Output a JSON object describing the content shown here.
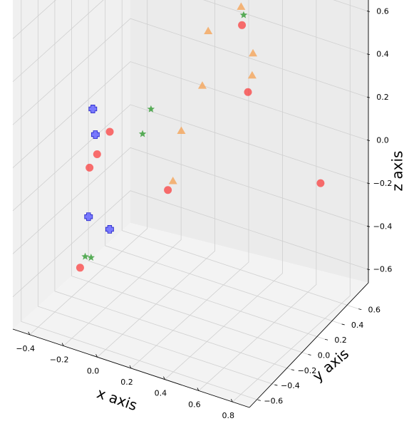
{
  "chart_data": {
    "type": "scatter3d",
    "xlabel": "x axis",
    "ylabel": "y axis",
    "zlabel": "z axis",
    "x_ticks": [
      "−0.4",
      "−0.2",
      "0.0",
      "0.2",
      "0.4",
      "0.6",
      "0.8"
    ],
    "y_ticks": [
      "−0.6",
      "−0.4",
      "−0.2",
      "0.0",
      "0.2",
      "0.4",
      "0.6"
    ],
    "z_ticks": [
      "−0.6",
      "−0.4",
      "−0.2",
      "0.0",
      "0.2",
      "0.4",
      "0.6"
    ],
    "grid": true,
    "colors": {
      "pane_left": "#f0f0f0",
      "pane_back": "#ebebeb",
      "pane_floor": "#f3f3f3",
      "grid": "#d0d0d0",
      "circle_fill": "#ff0000",
      "circle_light": "#f06060",
      "triangle_fill": "#f5a55a",
      "star_fill": "#3ca03c",
      "plus_fill": "#6464ff",
      "plus_stroke": "#2020c8"
    },
    "series": [
      {
        "marker": "circle",
        "color": "#ff0000",
        "points": [
          [
            -0.4,
            -0.1,
            -0.65
          ],
          [
            0.7,
            0.55,
            -0.2
          ],
          [
            -0.15,
            -0.25,
            0.1
          ],
          [
            -0.2,
            -0.3,
            0.0
          ],
          [
            -0.22,
            -0.35,
            -0.05
          ],
          [
            0.02,
            0.1,
            -0.25
          ],
          [
            0.1,
            0.72,
            0.62
          ],
          [
            0.1,
            0.71,
            0.6
          ],
          [
            0.15,
            0.72,
            0.58
          ],
          [
            0.2,
            0.62,
            0.38
          ],
          [
            0.32,
            0.45,
            0.16
          ],
          [
            0.08,
            0.7,
            0.55
          ]
        ]
      },
      {
        "marker": "triangle",
        "color": "#f5a55a",
        "points": [
          [
            0.12,
            0.7,
            0.56
          ],
          [
            0.18,
            0.65,
            0.45
          ],
          [
            0.3,
            0.55,
            0.3
          ],
          [
            0.32,
            0.5,
            0.22
          ],
          [
            0.02,
            0.58,
            0.32
          ],
          [
            0.05,
            0.45,
            0.12
          ],
          [
            0.0,
            0.3,
            -0.05
          ],
          [
            0.05,
            0.1,
            -0.2
          ]
        ]
      },
      {
        "marker": "star",
        "color": "#3ca03c",
        "points": [
          [
            -0.38,
            -0.08,
            -0.6
          ],
          [
            -0.36,
            -0.05,
            -0.61
          ],
          [
            0.2,
            0.64,
            0.42
          ],
          [
            -0.08,
            0.1,
            0.1
          ],
          [
            -0.08,
            0.0,
            0.02
          ]
        ]
      },
      {
        "marker": "plus",
        "color": "#6464ff",
        "points": [
          [
            -0.25,
            -0.25,
            0.18
          ],
          [
            -0.25,
            -0.22,
            0.05
          ],
          [
            -0.35,
            -0.1,
            -0.4
          ],
          [
            -0.25,
            -0.05,
            -0.45
          ]
        ]
      }
    ]
  }
}
